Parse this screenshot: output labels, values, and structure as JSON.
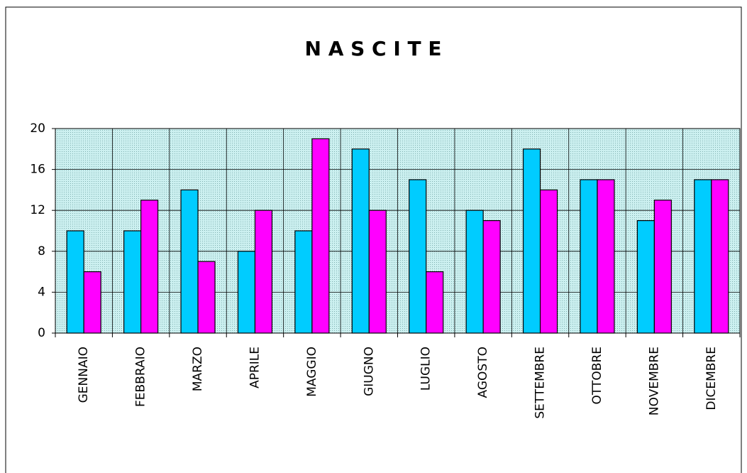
{
  "chart_data": {
    "type": "bar",
    "title": "N A S C I T E",
    "categories": [
      "GENNAIO",
      "FEBBRAIO",
      "MARZO",
      "APRILE",
      "MAGGIO",
      "GIUGNO",
      "LUGLIO",
      "AGOSTO",
      "SETTEMBRE",
      "OTTOBRE",
      "NOVEMBRE",
      "DICEMBRE"
    ],
    "series": [
      {
        "color": "#00ccff",
        "values": [
          10,
          10,
          14,
          8,
          10,
          18,
          15,
          12,
          18,
          15,
          11,
          15
        ]
      },
      {
        "color": "#ff00ff",
        "values": [
          6,
          13,
          7,
          12,
          19,
          12,
          6,
          11,
          14,
          15,
          13,
          15
        ]
      }
    ],
    "ylim": [
      0,
      20
    ],
    "yticks": [
      0,
      4,
      8,
      12,
      16,
      20
    ],
    "grid": true
  }
}
